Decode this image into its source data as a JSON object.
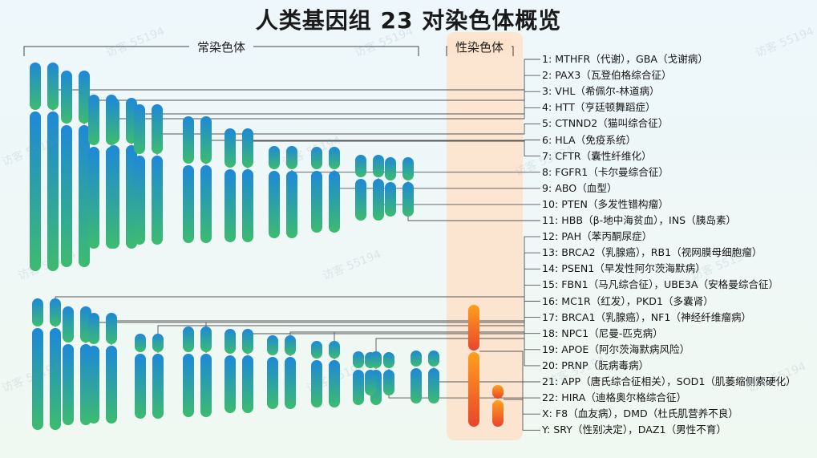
{
  "title": "人类基因组 23 对染色体概览",
  "groups": {
    "autosomes": "常染色体",
    "sex": "性染色体"
  },
  "watermark": "访客 55194",
  "colors": {
    "autosome_top": "#1e88d8",
    "autosome_bottom": "#3dbb6f",
    "sex_top": "#ff9f1c",
    "sex_bottom": "#e8452c",
    "sex_band": "#fde2cc"
  },
  "chromosomes": [
    {
      "id": "1",
      "text": "1: MTHFR（代谢），GBA（戈谢病）"
    },
    {
      "id": "2",
      "text": "2: PAX3（瓦登伯格综合征）"
    },
    {
      "id": "3",
      "text": "3: VHL（希佩尔-林道病）"
    },
    {
      "id": "4",
      "text": "4: HTT（亨廷顿舞蹈症）"
    },
    {
      "id": "5",
      "text": "5: CTNND2（猫叫综合征）"
    },
    {
      "id": "6",
      "text": "6: HLA（免疫系统）"
    },
    {
      "id": "7",
      "text": "7: CFTR（囊性纤维化）"
    },
    {
      "id": "8",
      "text": "8: FGFR1（卡尔曼综合征）"
    },
    {
      "id": "9",
      "text": "9: ABO（血型）"
    },
    {
      "id": "10",
      "text": "10: PTEN（多发性错构瘤）"
    },
    {
      "id": "11",
      "text": "11: HBB（β-地中海贫血），INS（胰岛素）"
    },
    {
      "id": "12",
      "text": "12: PAH（苯丙酮尿症）"
    },
    {
      "id": "13",
      "text": "13: BRCA2（乳腺癌），RB1（视网膜母细胞瘤）"
    },
    {
      "id": "14",
      "text": "14: PSEN1（早发性阿尔茨海默病）"
    },
    {
      "id": "15",
      "text": "15: FBN1（马凡综合征），UBE3A（安格曼综合征）"
    },
    {
      "id": "16",
      "text": "16: MC1R（红发），PKD1（多囊肾）"
    },
    {
      "id": "17",
      "text": "17: BRCA1（乳腺癌），NF1（神经纤维瘤病）"
    },
    {
      "id": "18",
      "text": "18: NPC1（尼曼-匹克病）"
    },
    {
      "id": "19",
      "text": "19: APOE（阿尔茨海默病风险）"
    },
    {
      "id": "20",
      "text": "20: PRNP（朊病毒病）"
    },
    {
      "id": "21",
      "text": "21: APP（唐氏综合征相关），SOD1（肌萎缩侧索硬化）"
    },
    {
      "id": "22",
      "text": "22: HIRA（迪格奥尔格综合征）"
    },
    {
      "id": "X",
      "text": "X: F8（血友病），DMD（杜氏肌营养不良）"
    },
    {
      "id": "Y",
      "text": "Y: SRY（性别决定），DAZ1（男性不育）"
    }
  ]
}
